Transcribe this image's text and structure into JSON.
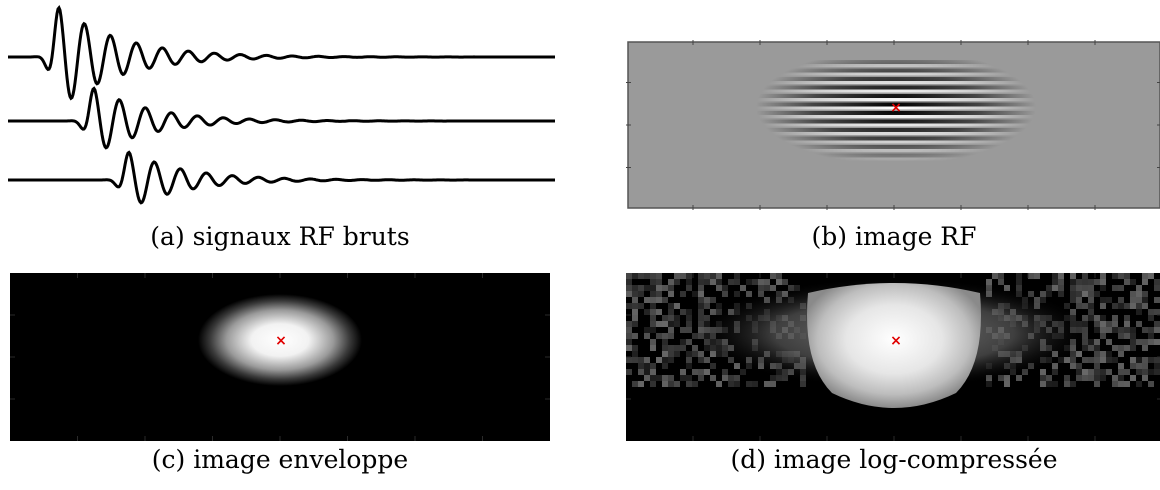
{
  "figure": {
    "panels": [
      {
        "id": "a",
        "caption": "(a) signaux RF bruts",
        "kind": "rf-traces"
      },
      {
        "id": "b",
        "caption": "(b) image RF",
        "kind": "rf-image"
      },
      {
        "id": "c",
        "caption": "(c) image enveloppe",
        "kind": "envelope-image"
      },
      {
        "id": "d",
        "caption": "(d) image log-compressée",
        "kind": "log-compressed-image"
      }
    ],
    "marker": {
      "symbol": "×",
      "color": "#e00000"
    },
    "colors": {
      "trace": "#000000",
      "rf_background": "#9a9a9a",
      "image_background": "#000000"
    }
  }
}
